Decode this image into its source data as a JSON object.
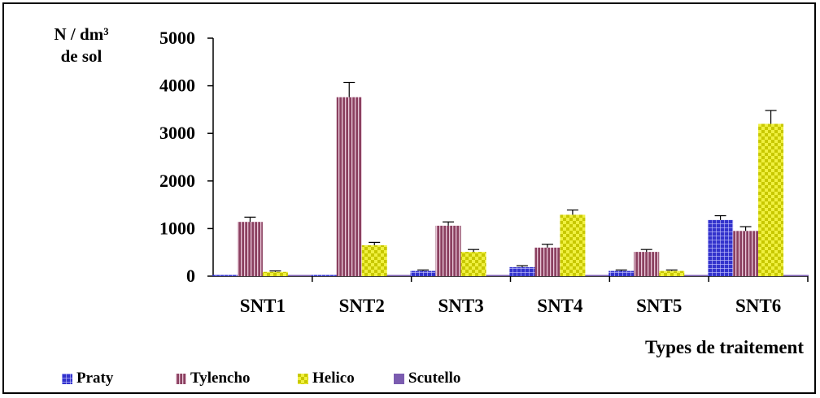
{
  "chart_data": {
    "type": "bar",
    "ylabel_line1": "N /  dm³",
    "ylabel_line2": "de sol",
    "xlabel": "Types de traitement",
    "ylim": [
      0,
      5000
    ],
    "yticks": [
      "0",
      "1000",
      "2000",
      "3000",
      "4000",
      "5000"
    ],
    "categories": [
      "SNT1",
      "SNT2",
      "SNT3",
      "SNT4",
      "SNT5",
      "SNT6"
    ],
    "error_bars": true,
    "series": [
      {
        "name": "Praty",
        "color": "#3333cc",
        "pattern": "grid",
        "values": [
          0,
          0,
          110,
          190,
          110,
          1180
        ],
        "errors": [
          0,
          0,
          20,
          30,
          20,
          90
        ]
      },
      {
        "name": "Tylencho",
        "color": "#8b4060",
        "pattern": "vstripe",
        "values": [
          1140,
          3760,
          1060,
          600,
          510,
          950
        ],
        "errors": [
          100,
          310,
          80,
          70,
          50,
          90
        ]
      },
      {
        "name": "Helico",
        "color": "#e6e632",
        "pattern": "checker",
        "values": [
          90,
          650,
          510,
          1290,
          110,
          3200
        ],
        "errors": [
          20,
          60,
          50,
          100,
          20,
          280
        ]
      },
      {
        "name": "Scutello",
        "color": "#7b5cb0",
        "pattern": "solid",
        "values": [
          0,
          0,
          0,
          0,
          0,
          0
        ],
        "errors": [
          0,
          0,
          0,
          0,
          0,
          0
        ]
      }
    ],
    "legend_position": "bottom"
  }
}
